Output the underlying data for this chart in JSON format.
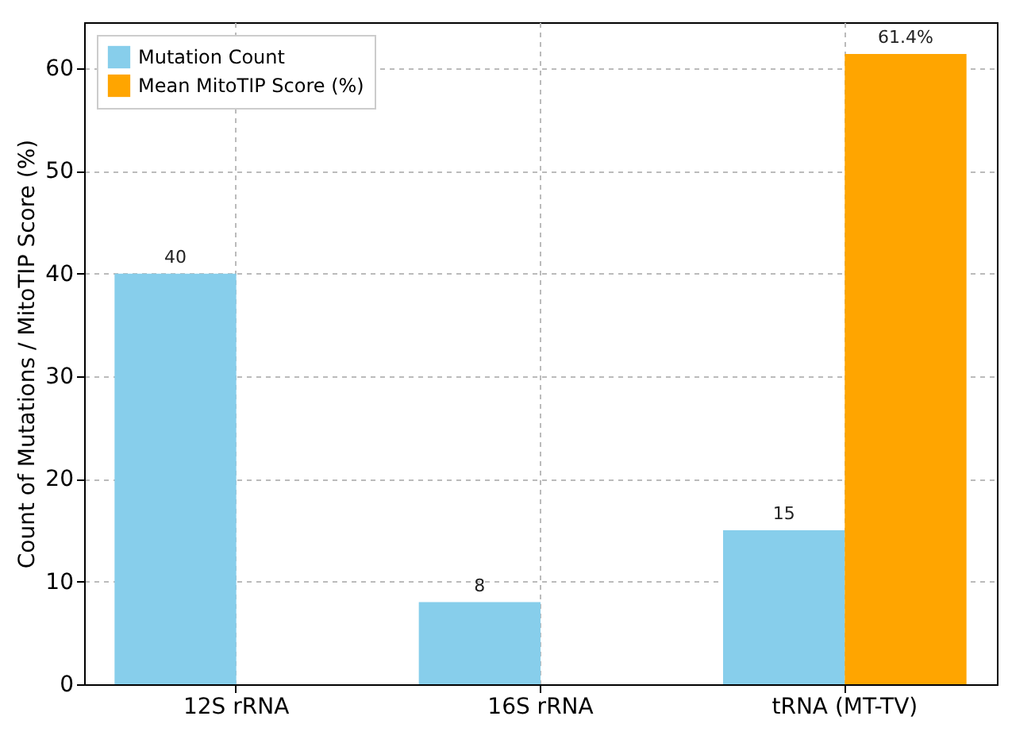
{
  "chart_data": {
    "type": "bar",
    "ylabel": "Count of Mutations / MitoTIP Score (%)",
    "categories": [
      "12S rRNA",
      "16S rRNA",
      "tRNA (MT-TV)"
    ],
    "series": [
      {
        "name": "Mutation Count",
        "color": "#87ceeb",
        "values": [
          40,
          8,
          15
        ],
        "value_labels": [
          "40",
          "8",
          "15"
        ]
      },
      {
        "name": "Mean MitoTIP Score (%)",
        "color": "#ffa500",
        "values": [
          null,
          null,
          61.4
        ],
        "value_labels": [
          null,
          null,
          "61.4%"
        ]
      }
    ],
    "ylim": [
      0,
      64.5
    ],
    "yticks": [
      0,
      10,
      20,
      30,
      40,
      50,
      60
    ],
    "grid": true,
    "legend": "top left"
  }
}
